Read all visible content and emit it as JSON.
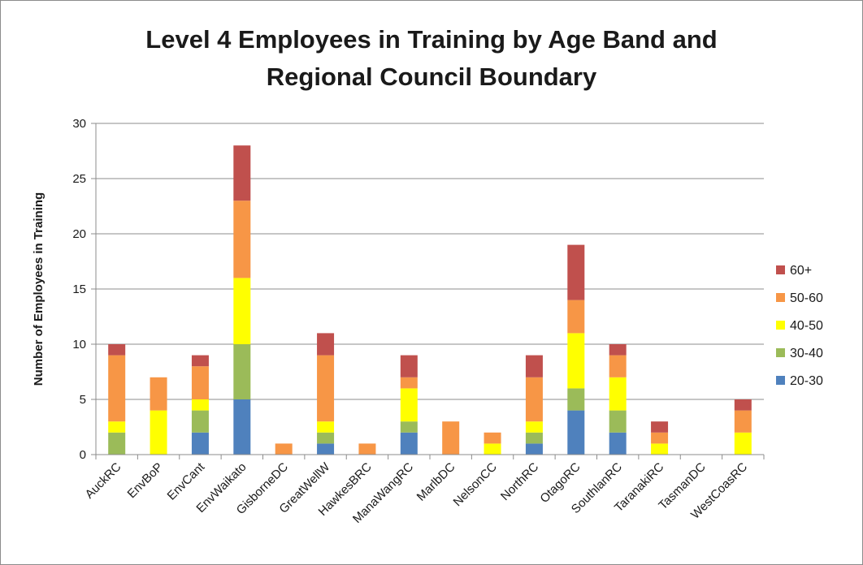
{
  "chart_data": {
    "type": "bar",
    "stacked": true,
    "title_line1": "Level 4 Employees in Training by Age Band and",
    "title_line2": "Regional Council Boundary",
    "xlabel": "",
    "ylabel": "Number of Employees in Training",
    "ylim": [
      0,
      30
    ],
    "yticks": [
      "0",
      "5",
      "10",
      "15",
      "20",
      "25",
      "30"
    ],
    "grid": true,
    "legend_position": "right",
    "categories": [
      "AuckRC",
      "EnvBoP",
      "EnvCant",
      "EnvWaikato",
      "GisborneDC",
      "GreatWellW",
      "HawkesBRC",
      "ManaWangRC",
      "MarlbDC",
      "NelsonCC",
      "NorthRC",
      "OtagoRC",
      "SouthlanRC",
      "TaranakiRC",
      "TasmanDC",
      "WestCoasRC"
    ],
    "series": [
      {
        "name": "20-30",
        "color": "#4f81bd",
        "values": [
          0,
          0,
          2,
          5,
          0,
          1,
          0,
          2,
          0,
          0,
          1,
          4,
          2,
          0,
          0,
          0
        ]
      },
      {
        "name": "30-40",
        "color": "#9bbb59",
        "values": [
          2,
          0,
          2,
          5,
          0,
          1,
          0,
          1,
          0,
          0,
          1,
          2,
          2,
          0,
          0,
          0
        ]
      },
      {
        "name": "40-50",
        "color": "#ffff00",
        "values": [
          1,
          4,
          1,
          6,
          0,
          1,
          0,
          3,
          0,
          1,
          1,
          5,
          3,
          1,
          0,
          2
        ]
      },
      {
        "name": "50-60",
        "color": "#f79646",
        "values": [
          6,
          3,
          3,
          7,
          1,
          6,
          1,
          1,
          3,
          1,
          4,
          3,
          2,
          1,
          0,
          2
        ]
      },
      {
        "name": "60+",
        "color": "#c0504d",
        "values": [
          1,
          0,
          1,
          5,
          0,
          2,
          0,
          2,
          0,
          0,
          2,
          5,
          1,
          1,
          0,
          1
        ]
      }
    ]
  }
}
